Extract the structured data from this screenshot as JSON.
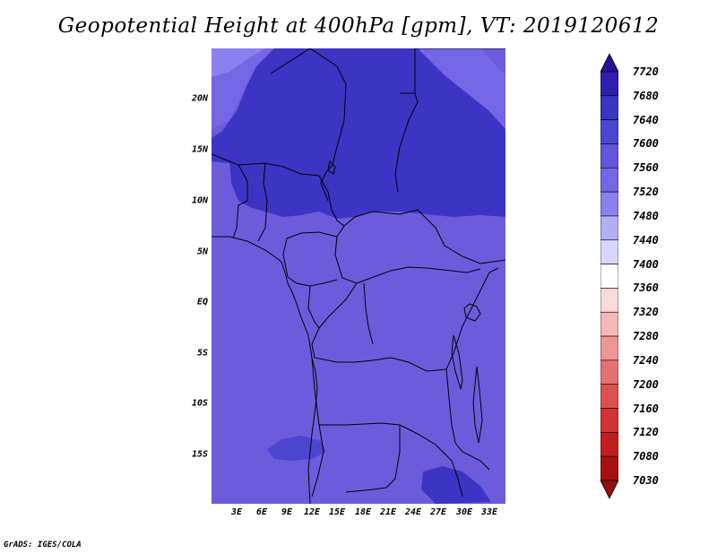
{
  "title": "Geopotential Height at 400hPa [gpm], VT: 2019120612",
  "credit": "GrADS: IGES/COLA",
  "map": {
    "lat_labels": [
      "20N",
      "15N",
      "10N",
      "5N",
      "EQ",
      "5S",
      "10S",
      "15S"
    ],
    "lon_labels": [
      "3E",
      "6E",
      "9E",
      "12E",
      "15E",
      "18E",
      "21E",
      "24E",
      "27E",
      "30E",
      "33E"
    ],
    "fill_colors": {
      "level_7600": "#3c34c2",
      "level_7560": "#6c5cdc",
      "level_7520": "#7566e6",
      "level_7480": "#8c80f0"
    }
  },
  "colorbar": {
    "labels": [
      "7720",
      "7680",
      "7640",
      "7600",
      "7560",
      "7520",
      "7480",
      "7440",
      "7400",
      "7360",
      "7320",
      "7280",
      "7240",
      "7200",
      "7160",
      "7120",
      "7080",
      "7030"
    ],
    "colors": [
      "#26109a",
      "#2f1fad",
      "#3c34c2",
      "#4c45d0",
      "#6355dd",
      "#7566e6",
      "#8c80f0",
      "#b3aef6",
      "#d8d6fb",
      "#ffffff",
      "#fbdada",
      "#f5b8b8",
      "#ee9696",
      "#e57272",
      "#dc5050",
      "#d23434",
      "#c31e1e",
      "#a81010",
      "#921010"
    ]
  }
}
